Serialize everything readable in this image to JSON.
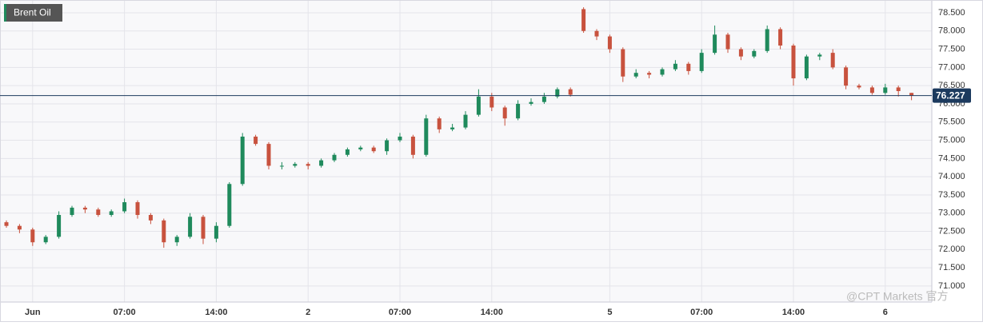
{
  "chart_data": {
    "type": "candlestick",
    "title": "Brent Oil",
    "watermark": "@CPT Markets 官方",
    "categories": [
      null,
      null,
      "Jun",
      null,
      null,
      null,
      null,
      null,
      null,
      "07:00",
      null,
      null,
      null,
      null,
      null,
      null,
      "14:00",
      null,
      null,
      null,
      null,
      null,
      null,
      "2",
      null,
      null,
      null,
      null,
      null,
      null,
      "07:00",
      null,
      null,
      null,
      null,
      null,
      null,
      "14:00",
      null,
      null,
      null,
      null,
      null,
      null,
      null,
      null,
      "5",
      null,
      null,
      null,
      null,
      null,
      null,
      "07:00",
      null,
      null,
      null,
      null,
      null,
      null,
      "14:00",
      null,
      null,
      null,
      null,
      null,
      null,
      "6",
      null,
      null
    ],
    "open": [
      72.75,
      72.65,
      72.55,
      72.2,
      72.35,
      72.95,
      73.15,
      73.1,
      72.95,
      73.05,
      73.3,
      72.95,
      72.8,
      72.2,
      72.35,
      72.9,
      72.3,
      72.65,
      73.8,
      75.1,
      74.9,
      74.3,
      74.3,
      74.35,
      74.3,
      74.45,
      74.6,
      74.75,
      74.8,
      74.7,
      75.0,
      75.1,
      74.6,
      75.6,
      75.3,
      75.35,
      75.7,
      76.2,
      75.9,
      75.6,
      76.0,
      76.05,
      76.2,
      76.4,
      78.6,
      78.0,
      77.85,
      77.5,
      76.75,
      76.85,
      76.8,
      76.95,
      77.1,
      76.9,
      77.4,
      77.9,
      77.5,
      77.3,
      77.45,
      78.05,
      77.6,
      76.7,
      77.3,
      77.4,
      77.0,
      76.5,
      76.45,
      76.3,
      76.45,
      76.3
    ],
    "high": [
      72.8,
      72.7,
      72.6,
      72.4,
      73.05,
      73.2,
      73.2,
      73.15,
      73.1,
      73.4,
      73.35,
      73.0,
      72.85,
      72.4,
      73.0,
      72.95,
      72.75,
      73.85,
      75.2,
      75.15,
      74.95,
      74.4,
      74.4,
      74.4,
      74.5,
      74.65,
      74.8,
      74.85,
      74.85,
      75.05,
      75.2,
      75.15,
      75.7,
      75.65,
      75.45,
      75.8,
      76.4,
      76.3,
      75.95,
      76.1,
      76.15,
      76.3,
      76.45,
      76.45,
      78.65,
      78.05,
      77.9,
      77.55,
      76.95,
      76.9,
      77.0,
      77.2,
      77.15,
      77.5,
      78.15,
      77.95,
      77.55,
      77.5,
      78.15,
      78.1,
      77.65,
      77.35,
      77.4,
      77.5,
      77.05,
      76.55,
      76.5,
      76.55,
      76.5,
      76.3
    ],
    "low": [
      72.6,
      72.45,
      72.1,
      72.15,
      72.3,
      72.9,
      73.0,
      72.9,
      72.9,
      73.0,
      72.85,
      72.7,
      72.05,
      72.1,
      72.3,
      72.15,
      72.2,
      72.6,
      73.75,
      74.85,
      74.2,
      74.2,
      74.25,
      74.2,
      74.25,
      74.4,
      74.55,
      74.7,
      74.65,
      74.6,
      74.95,
      74.5,
      74.55,
      75.2,
      75.25,
      75.3,
      75.65,
      75.8,
      75.4,
      75.55,
      75.95,
      76.0,
      76.15,
      76.2,
      77.95,
      77.75,
      77.4,
      76.6,
      76.7,
      76.7,
      76.75,
      76.9,
      76.8,
      76.85,
      77.35,
      77.4,
      77.2,
      77.25,
      77.4,
      77.5,
      76.5,
      76.65,
      77.2,
      76.95,
      76.4,
      76.4,
      76.25,
      76.25,
      76.2,
      76.1
    ],
    "close": [
      72.65,
      72.55,
      72.2,
      72.35,
      72.95,
      73.15,
      73.1,
      72.95,
      73.05,
      73.3,
      72.95,
      72.8,
      72.2,
      72.35,
      72.9,
      72.3,
      72.65,
      73.8,
      75.1,
      74.9,
      74.3,
      74.3,
      74.35,
      74.3,
      74.45,
      74.6,
      74.75,
      74.8,
      74.7,
      75.0,
      75.1,
      74.6,
      75.6,
      75.3,
      75.35,
      75.7,
      76.2,
      75.9,
      75.6,
      76.0,
      76.05,
      76.2,
      76.4,
      76.25,
      78.0,
      77.85,
      77.5,
      76.75,
      76.85,
      76.8,
      76.95,
      77.1,
      76.9,
      77.4,
      77.9,
      77.5,
      77.3,
      77.45,
      78.05,
      77.6,
      76.7,
      77.3,
      77.35,
      77.0,
      76.5,
      76.45,
      76.3,
      76.45,
      76.35,
      76.23
    ],
    "up_color": "#1f8a5c",
    "down_color": "#c8523e",
    "last_price": 76.227,
    "last_price_color": "#1c3a5e",
    "ylim": [
      70.56,
      78.85
    ],
    "yticks": [
      {
        "value": 71,
        "label": "71.000"
      },
      {
        "value": 71.5,
        "label": "71.500"
      },
      {
        "value": 72,
        "label": "72.000"
      },
      {
        "value": 72.5,
        "label": "72.500"
      },
      {
        "value": 73,
        "label": "73.000"
      },
      {
        "value": 73.5,
        "label": "73.500"
      },
      {
        "value": 74,
        "label": "74.000"
      },
      {
        "value": 74.5,
        "label": "74.500"
      },
      {
        "value": 75,
        "label": "75.000"
      },
      {
        "value": 75.5,
        "label": "75.500"
      },
      {
        "value": 76,
        "label": "76.000"
      },
      {
        "value": 76.5,
        "label": "76.500"
      },
      {
        "value": 77,
        "label": "77.000"
      },
      {
        "value": 77.5,
        "label": "77.500"
      },
      {
        "value": 78,
        "label": "78.000"
      },
      {
        "value": 78.5,
        "label": "78.500"
      }
    ],
    "grid": true
  }
}
